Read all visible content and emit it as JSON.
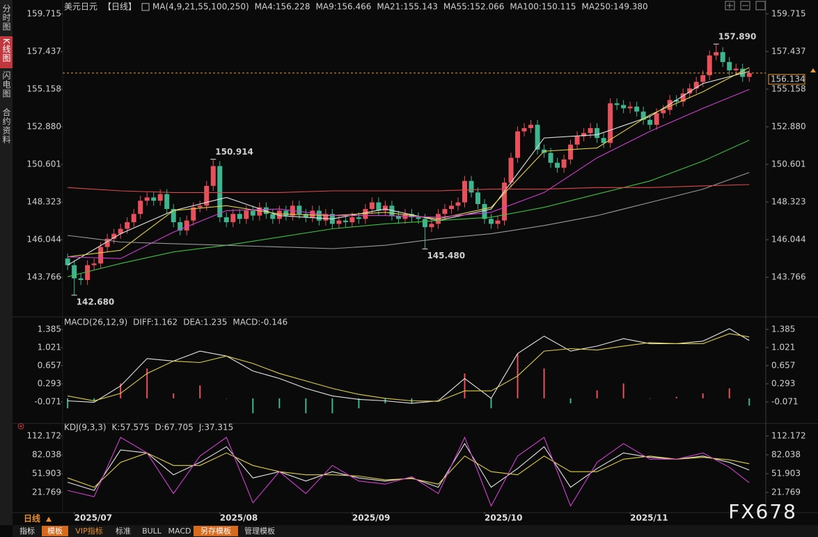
{
  "sidebar": [
    "分时图",
    "K线图",
    "闪电图",
    "合约资料"
  ],
  "footer": {
    "period": "日线",
    "tabs": [
      "指标",
      "模板",
      "VIP指标",
      "标准",
      "BULL",
      "MACD",
      "另存模板",
      "管理模板"
    ]
  },
  "watermark": "FX678",
  "chart_data": [
    {
      "type": "candlestick",
      "title": "美元日元",
      "period": "【日线】",
      "indicator": "MA(4,9,21,55,100,250)",
      "up_color": "#e8505b",
      "down_color": "#3fb58f",
      "open": [
        144.9,
        144.5,
        143.7,
        143.6,
        144.5,
        144.6,
        145.6,
        146.1,
        146.4,
        146.7,
        147.1,
        147.6,
        148.4,
        148.6,
        148.4,
        148.8,
        147.9,
        147.1,
        146.6,
        147.2,
        148.0,
        148.1,
        149.3,
        150.5,
        147.4,
        147.1,
        147.6,
        147.3,
        147.8,
        147.5,
        148.0,
        147.6,
        147.3,
        147.8,
        147.5,
        148.1,
        147.6,
        147.4,
        147.8,
        147.2,
        147.6,
        147.0,
        147.2,
        147.1,
        147.4,
        147.3,
        147.9,
        148.3,
        147.8,
        148.1,
        147.5,
        147.3,
        147.6,
        147.4,
        147.3,
        146.8,
        147.0,
        147.6,
        147.9,
        148.1,
        148.3,
        149.6,
        148.9,
        148.2,
        147.3,
        147.0,
        147.2,
        149.5,
        151.0,
        152.6,
        152.8,
        153.0,
        151.5,
        151.3,
        150.7,
        150.4,
        150.9,
        151.8,
        152.3,
        152.5,
        152.8,
        152.2,
        151.9,
        154.3,
        154.2,
        154.0,
        154.1,
        153.8,
        153.3,
        153.0,
        153.7,
        153.9,
        154.5,
        154.4,
        154.9,
        155.2,
        155.6,
        156.0,
        157.2,
        157.4,
        156.8,
        156.3,
        156.4,
        155.9
      ],
      "high": [
        145.2,
        144.8,
        144.0,
        144.8,
        144.9,
        145.9,
        146.4,
        146.7,
        147.0,
        147.4,
        147.9,
        148.7,
        148.9,
        148.9,
        149.1,
        149.1,
        148.2,
        147.4,
        147.5,
        148.3,
        148.4,
        149.6,
        150.914,
        150.8,
        147.7,
        147.9,
        147.9,
        148.1,
        148.1,
        148.3,
        148.3,
        147.9,
        148.1,
        148.1,
        148.4,
        148.4,
        147.9,
        148.1,
        148.1,
        147.9,
        147.9,
        147.5,
        147.5,
        147.7,
        147.7,
        148.2,
        148.6,
        148.6,
        148.4,
        148.4,
        147.8,
        147.9,
        147.9,
        147.7,
        147.6,
        147.3,
        147.9,
        148.2,
        148.4,
        148.6,
        149.9,
        149.9,
        149.2,
        148.5,
        147.6,
        147.5,
        149.8,
        151.3,
        152.9,
        153.1,
        153.3,
        153.3,
        151.8,
        151.6,
        151.0,
        151.2,
        152.1,
        152.6,
        152.8,
        153.1,
        153.1,
        152.5,
        154.6,
        154.6,
        154.5,
        154.4,
        154.4,
        154.1,
        153.6,
        154.0,
        154.2,
        154.8,
        154.8,
        155.2,
        155.5,
        155.9,
        156.3,
        157.5,
        157.89,
        157.7,
        157.1,
        156.7,
        156.7,
        156.4
      ],
      "low": [
        144.2,
        142.68,
        143.3,
        143.3,
        144.2,
        144.3,
        145.3,
        145.8,
        146.1,
        146.4,
        146.8,
        147.3,
        148.1,
        148.1,
        148.1,
        147.6,
        146.8,
        146.3,
        146.3,
        146.9,
        147.7,
        147.8,
        149.0,
        147.1,
        146.8,
        146.8,
        147.0,
        147.0,
        147.2,
        147.2,
        147.3,
        147.0,
        147.0,
        147.2,
        147.2,
        147.3,
        147.1,
        147.1,
        146.9,
        146.9,
        146.7,
        146.7,
        146.8,
        146.8,
        147.0,
        147.0,
        147.6,
        147.5,
        147.5,
        147.2,
        147.0,
        147.0,
        147.1,
        147.0,
        145.48,
        146.5,
        146.7,
        147.3,
        147.6,
        147.8,
        148.0,
        148.6,
        147.9,
        147.0,
        146.7,
        146.7,
        146.9,
        149.2,
        150.7,
        152.3,
        152.5,
        151.2,
        151.0,
        150.4,
        150.1,
        150.1,
        150.6,
        151.5,
        152.0,
        152.2,
        151.9,
        151.6,
        151.6,
        153.9,
        153.7,
        153.7,
        153.5,
        153.0,
        152.7,
        152.7,
        153.4,
        153.6,
        154.1,
        154.1,
        154.6,
        154.9,
        155.3,
        155.7,
        156.9,
        156.5,
        156.0,
        156.0,
        155.6,
        155.6
      ],
      "close": [
        144.5,
        143.7,
        143.6,
        144.5,
        144.6,
        145.6,
        146.1,
        146.4,
        146.7,
        147.1,
        147.6,
        148.4,
        148.6,
        148.4,
        148.8,
        147.9,
        147.1,
        146.6,
        147.2,
        148.0,
        148.1,
        149.3,
        150.5,
        147.4,
        147.1,
        147.6,
        147.3,
        147.8,
        147.5,
        148.0,
        147.6,
        147.3,
        147.8,
        147.5,
        148.1,
        147.6,
        147.4,
        147.8,
        147.2,
        147.6,
        147.0,
        147.2,
        147.1,
        147.4,
        147.3,
        147.9,
        148.3,
        147.8,
        148.1,
        147.5,
        147.3,
        147.6,
        147.4,
        147.3,
        146.8,
        147.0,
        147.6,
        147.9,
        148.1,
        148.3,
        149.6,
        148.9,
        148.2,
        147.3,
        147.0,
        147.2,
        149.5,
        151.0,
        152.6,
        152.8,
        153.0,
        151.5,
        151.3,
        150.7,
        150.4,
        150.9,
        151.8,
        152.3,
        152.5,
        152.8,
        152.2,
        151.9,
        154.3,
        154.2,
        154.0,
        154.1,
        153.8,
        153.3,
        153.0,
        153.7,
        153.9,
        154.5,
        154.4,
        154.9,
        155.2,
        155.6,
        156.0,
        157.2,
        157.4,
        156.8,
        156.3,
        156.4,
        155.9,
        156.134
      ],
      "series": [
        {
          "name": "MA4:156.228",
          "color": "#e6e6e6",
          "x": [
            0,
            8,
            16,
            24,
            32,
            40,
            48,
            56,
            64,
            72,
            80,
            88,
            96,
            103
          ],
          "values": [
            144.5,
            146.4,
            147.8,
            148.6,
            147.5,
            147.3,
            147.9,
            147.2,
            147.9,
            152.2,
            152.4,
            153.5,
            155.5,
            156.228
          ]
        },
        {
          "name": "MA9:156.466",
          "color": "#e0d040",
          "x": [
            0,
            8,
            16,
            24,
            32,
            40,
            48,
            56,
            64,
            72,
            80,
            88,
            96,
            103
          ],
          "values": [
            145.0,
            145.4,
            147.8,
            148.1,
            147.6,
            147.5,
            147.7,
            147.3,
            148.0,
            151.4,
            151.6,
            153.6,
            155.0,
            156.466
          ]
        },
        {
          "name": "MA21:155.143",
          "color": "#d040d0",
          "x": [
            0,
            8,
            16,
            24,
            32,
            40,
            48,
            56,
            64,
            72,
            80,
            88,
            96,
            103
          ],
          "values": [
            145.0,
            144.9,
            146.5,
            147.8,
            147.9,
            147.5,
            147.5,
            147.4,
            147.7,
            148.9,
            151.0,
            152.6,
            154.0,
            155.143
          ]
        },
        {
          "name": "MA55:152.066",
          "color": "#40c040",
          "x": [
            0,
            8,
            16,
            24,
            32,
            40,
            48,
            56,
            64,
            72,
            80,
            88,
            96,
            103
          ],
          "values": [
            143.8,
            144.6,
            145.3,
            145.7,
            146.2,
            146.7,
            147.0,
            147.2,
            147.4,
            148.0,
            148.8,
            149.6,
            150.8,
            152.066
          ]
        },
        {
          "name": "MA100:150.115",
          "color": "#9a9a9a",
          "x": [
            0,
            8,
            16,
            24,
            32,
            40,
            48,
            56,
            64,
            72,
            80,
            88,
            96,
            103
          ],
          "values": [
            146.3,
            145.9,
            145.8,
            145.7,
            145.6,
            145.5,
            145.7,
            146.1,
            146.4,
            146.9,
            147.5,
            148.3,
            149.1,
            150.115
          ]
        },
        {
          "name": "MA250:149.380",
          "color": "#e04848",
          "x": [
            0,
            8,
            16,
            24,
            32,
            40,
            48,
            56,
            64,
            72,
            80,
            88,
            96,
            103
          ],
          "values": [
            149.2,
            149.0,
            148.9,
            148.9,
            148.9,
            149.0,
            149.0,
            149.0,
            149.1,
            149.1,
            149.2,
            149.2,
            149.3,
            149.38
          ]
        }
      ],
      "last_price": {
        "value": 156.134,
        "label": "156.134"
      },
      "annotations": [
        {
          "x": 98,
          "value": 157.89,
          "label": "157.890"
        },
        {
          "x": 22,
          "value": 150.914,
          "label": "150.914"
        },
        {
          "x": 54,
          "value": 145.48,
          "label": "145.480"
        },
        {
          "x": 1,
          "value": 142.68,
          "label": "142.680"
        }
      ],
      "xlim": [
        -0.75,
        105.5
      ],
      "ylim": [
        141.66,
        160.22
      ],
      "yticks": [
        159.715,
        157.437,
        155.158,
        {
          "value": 152.88,
          "label": "152.880"
        },
        150.601,
        148.323,
        146.044,
        143.766
      ]
    },
    {
      "type": "macd",
      "title": "MACD(26,12,9)",
      "up_color": "#e8505b",
      "down_color": "#3fb58f",
      "series": [
        {
          "name": "DIFF:1.162",
          "color": "#e6e6e6",
          "x": [
            0,
            4,
            8,
            12,
            16,
            20,
            24,
            28,
            32,
            36,
            40,
            44,
            48,
            52,
            56,
            60,
            64,
            68,
            72,
            76,
            80,
            84,
            88,
            92,
            96,
            100,
            103
          ],
          "values": [
            -0.05,
            -0.08,
            0.25,
            0.8,
            0.75,
            0.95,
            0.85,
            0.55,
            0.4,
            0.2,
            0.05,
            -0.02,
            -0.05,
            -0.1,
            -0.05,
            0.4,
            0.0,
            0.9,
            1.25,
            0.95,
            1.05,
            1.2,
            1.1,
            1.1,
            1.15,
            1.4,
            1.162
          ]
        },
        {
          "name": "DEA:1.235",
          "color": "#e0d040",
          "x": [
            0,
            4,
            8,
            12,
            16,
            20,
            24,
            28,
            32,
            36,
            40,
            44,
            48,
            52,
            56,
            60,
            64,
            68,
            72,
            76,
            80,
            84,
            88,
            92,
            96,
            100,
            103
          ],
          "values": [
            0.05,
            -0.05,
            0.1,
            0.5,
            0.75,
            0.72,
            0.85,
            0.7,
            0.5,
            0.35,
            0.2,
            0.08,
            0.0,
            -0.05,
            -0.06,
            0.15,
            0.15,
            0.45,
            0.95,
            1.0,
            0.97,
            1.05,
            1.12,
            1.1,
            1.1,
            1.3,
            1.235
          ]
        },
        {
          "name": "MACD:-0.146",
          "color": "#d040d0",
          "type": "bar",
          "x": [
            0,
            4,
            8,
            12,
            16,
            20,
            24,
            28,
            32,
            36,
            40,
            44,
            48,
            52,
            56,
            60,
            64,
            68,
            72,
            76,
            80,
            84,
            88,
            92,
            96,
            100,
            103
          ],
          "values": [
            -0.2,
            -0.06,
            0.3,
            0.6,
            0.1,
            0.26,
            0.0,
            -0.3,
            -0.2,
            -0.3,
            -0.3,
            -0.2,
            -0.1,
            -0.1,
            0.0,
            0.5,
            -0.2,
            0.9,
            0.6,
            -0.1,
            0.16,
            0.3,
            0.0,
            0.03,
            0.1,
            0.2,
            -0.146
          ]
        }
      ],
      "xlim": [
        -0.75,
        105.5
      ],
      "ylim": [
        -0.449,
        1.539
      ],
      "yticks": [
        1.385,
        1.021,
        0.657,
        0.293,
        -0.071
      ]
    },
    {
      "type": "kdj",
      "title": "KDJ(9,3,3)",
      "series": [
        {
          "name": "K:57.575",
          "color": "#e6e6e6",
          "x": [
            0,
            4,
            8,
            12,
            16,
            20,
            24,
            28,
            32,
            36,
            40,
            44,
            48,
            52,
            56,
            60,
            64,
            68,
            72,
            76,
            80,
            84,
            88,
            92,
            96,
            100,
            103
          ],
          "values": [
            38,
            25,
            90,
            85,
            50,
            70,
            95,
            45,
            55,
            40,
            55,
            45,
            40,
            45,
            30,
            100,
            30,
            60,
            95,
            30,
            60,
            85,
            78,
            75,
            80,
            70,
            57.575
          ]
        },
        {
          "name": "D:67.705",
          "color": "#e0d040",
          "x": [
            0,
            4,
            8,
            12,
            16,
            20,
            24,
            28,
            32,
            36,
            40,
            44,
            48,
            52,
            56,
            60,
            64,
            68,
            72,
            76,
            80,
            84,
            88,
            92,
            96,
            100,
            103
          ],
          "values": [
            45,
            30,
            70,
            85,
            65,
            65,
            85,
            65,
            55,
            50,
            50,
            48,
            42,
            44,
            35,
            80,
            55,
            50,
            80,
            55,
            55,
            75,
            80,
            75,
            78,
            74,
            67.705
          ]
        },
        {
          "name": "J:37.315",
          "color": "#d040d0",
          "x": [
            0,
            4,
            8,
            12,
            16,
            20,
            24,
            28,
            32,
            36,
            40,
            44,
            48,
            52,
            56,
            60,
            64,
            68,
            72,
            76,
            80,
            84,
            88,
            92,
            96,
            100,
            103
          ],
          "values": [
            25,
            15,
            110,
            85,
            20,
            80,
            110,
            5,
            55,
            20,
            65,
            40,
            35,
            47,
            20,
            110,
            0,
            80,
            110,
            0,
            70,
            100,
            75,
            75,
            85,
            62,
            37.315
          ]
        }
      ],
      "xlim": [
        -0.75,
        105.5
      ],
      "ylim": [
        -9.5,
        121.1
      ],
      "yticks": [
        112.172,
        82.038,
        51.903,
        21.769
      ],
      "xticks": [
        {
          "value": 1,
          "label": "2025/07"
        },
        {
          "value": 23,
          "label": "2025/08"
        },
        {
          "value": 43,
          "label": "2025/09"
        },
        {
          "value": 63,
          "label": "2025/10"
        },
        {
          "value": 85,
          "label": "2025/11"
        }
      ]
    }
  ]
}
